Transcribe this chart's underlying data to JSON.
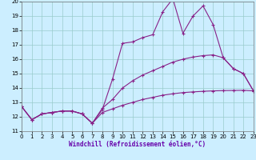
{
  "line1_x": [
    0,
    1,
    2,
    3,
    4,
    5,
    6,
    7,
    8,
    9,
    10,
    11,
    12,
    13,
    14,
    15,
    16,
    17,
    18,
    19,
    20,
    21,
    22,
    23
  ],
  "line1_y": [
    12.7,
    11.8,
    12.2,
    12.3,
    12.4,
    12.4,
    12.2,
    11.55,
    12.5,
    14.6,
    17.1,
    17.2,
    17.5,
    17.7,
    19.3,
    20.2,
    17.8,
    19.0,
    19.7,
    18.4,
    16.1,
    15.35,
    15.0,
    13.8
  ],
  "line2_x": [
    0,
    1,
    2,
    3,
    4,
    5,
    6,
    7,
    8,
    9,
    10,
    11,
    12,
    13,
    14,
    15,
    16,
    17,
    18,
    19,
    20,
    21,
    22,
    23
  ],
  "line2_y": [
    12.7,
    11.8,
    12.2,
    12.3,
    12.4,
    12.4,
    12.2,
    11.55,
    12.6,
    13.2,
    14.0,
    14.5,
    14.9,
    15.2,
    15.5,
    15.8,
    16.0,
    16.15,
    16.25,
    16.3,
    16.1,
    15.35,
    15.0,
    13.8
  ],
  "line3_x": [
    0,
    1,
    2,
    3,
    4,
    5,
    6,
    7,
    8,
    9,
    10,
    11,
    12,
    13,
    14,
    15,
    16,
    17,
    18,
    19,
    20,
    21,
    22,
    23
  ],
  "line3_y": [
    12.7,
    11.8,
    12.2,
    12.3,
    12.4,
    12.4,
    12.2,
    11.55,
    12.3,
    12.55,
    12.8,
    13.0,
    13.2,
    13.35,
    13.5,
    13.6,
    13.68,
    13.73,
    13.77,
    13.8,
    13.82,
    13.83,
    13.84,
    13.8
  ],
  "line_color": "#882288",
  "bg_color": "#cceeff",
  "grid_color": "#99cccc",
  "xlabel": "Windchill (Refroidissement éolien,°C)",
  "xlim": [
    0,
    23
  ],
  "ylim": [
    11,
    20
  ],
  "yticks": [
    11,
    12,
    13,
    14,
    15,
    16,
    17,
    18,
    19,
    20
  ],
  "xticks": [
    0,
    1,
    2,
    3,
    4,
    5,
    6,
    7,
    8,
    9,
    10,
    11,
    12,
    13,
    14,
    15,
    16,
    17,
    18,
    19,
    20,
    21,
    22,
    23
  ]
}
